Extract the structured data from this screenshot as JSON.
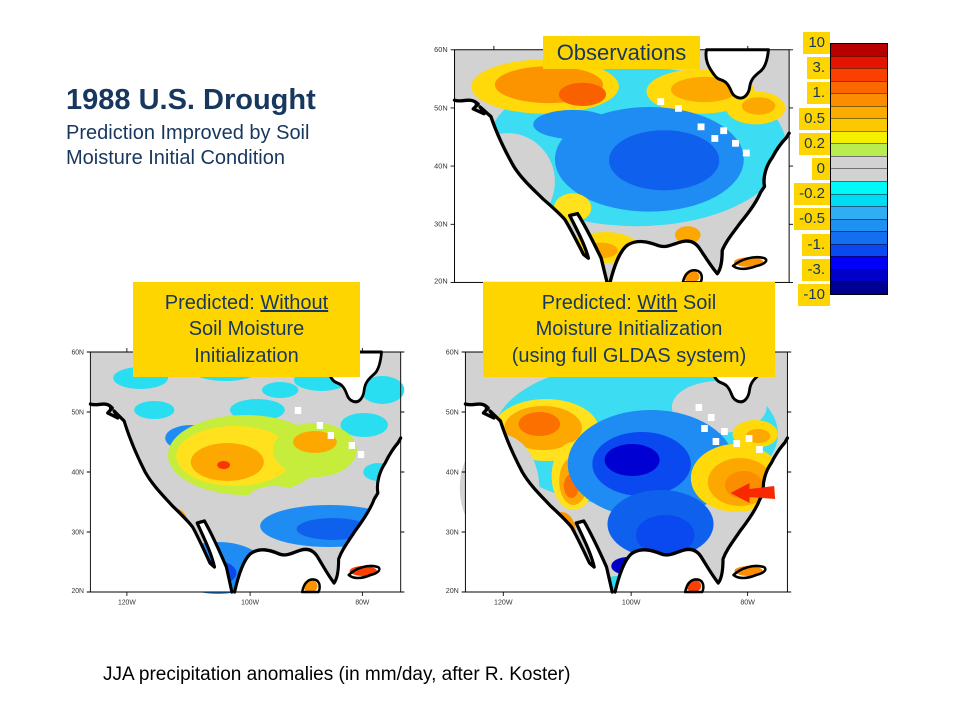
{
  "slide": {
    "title": "1988 U.S. Drought",
    "subtitle_lines": [
      "Prediction Improved by Soil",
      "Moisture Initial Condition"
    ],
    "caption": "JJA precipitation anomalies (in mm/day, after R. Koster)",
    "colors": {
      "accent_text": "#17375E",
      "label_background": "#FFD500",
      "background": "#FFFFFF"
    }
  },
  "panels": [
    {
      "id": "observations",
      "label_lines": [
        [
          {
            "t": "Observations"
          }
        ]
      ]
    },
    {
      "id": "predicted_without",
      "label_lines": [
        [
          {
            "t": "Predicted: "
          },
          {
            "t": "Without",
            "u": true
          }
        ],
        [
          {
            "t": "Soil Moisture"
          }
        ],
        [
          {
            "t": "Initialization"
          }
        ]
      ]
    },
    {
      "id": "predicted_with",
      "label_lines": [
        [
          {
            "t": "Predicted: "
          },
          {
            "t": "With",
            "u": true
          },
          {
            "t": " Soil"
          }
        ],
        [
          {
            "t": "Moisture Initialization"
          }
        ],
        [
          {
            "t": "(using full GLDAS system)"
          }
        ]
      ]
    }
  ],
  "axes": {
    "y_ticks": [
      "60N",
      "50N",
      "40N",
      "30N",
      "20N"
    ],
    "x_ticks": [
      "120W",
      "100W",
      "80W"
    ]
  },
  "colorbar": {
    "tick_labels": [
      "10",
      "3.",
      "1.",
      "0.5",
      "0.2",
      "0",
      "-0.2",
      "-0.5",
      "-1.",
      "-3.",
      "-10"
    ],
    "colors": [
      "#B80000",
      "#E41400",
      "#F94000",
      "#FC6800",
      "#FC8C00",
      "#FCAC00",
      "#FCC800",
      "#F4F000",
      "#B8EC50",
      "#D2D2D2",
      "#D2D2D2",
      "#00F8F8",
      "#00DCF4",
      "#30AEF4",
      "#1E90F0",
      "#146EF0",
      "#0A48F0",
      "#0000FA",
      "#0000C8",
      "#000090"
    ]
  },
  "chart_data": {
    "type": "heatmap",
    "subtype": "filled-contour geographic maps (3 panels)",
    "units": "mm/day",
    "title": "1988 U.S. Drought — JJA precipitation anomalies",
    "x_ticks": [
      "120W",
      "100W",
      "80W"
    ],
    "y_ticks": [
      "60N",
      "50N",
      "40N",
      "30N",
      "20N"
    ],
    "colorbar_levels": [
      "10",
      "3.",
      "1.",
      "0.5",
      "0.2",
      "0",
      "-0.2",
      "-0.5",
      "-1.",
      "-3.",
      "-10"
    ],
    "colorbar_colors": [
      "#B80000",
      "#E41400",
      "#F94000",
      "#FC6800",
      "#FC8C00",
      "#FCAC00",
      "#FCC800",
      "#F4F000",
      "#B8EC50",
      "#D2D2D2",
      "#D2D2D2",
      "#00F8F8",
      "#00DCF4",
      "#30AEF4",
      "#1E90F0",
      "#146EF0",
      "#0A48F0",
      "#0000FA",
      "#0000C8",
      "#000090"
    ],
    "panels": [
      {
        "title": "Observations",
        "pattern": "Strong negative (blue, about -0.5 to -3 mm/day) anomaly over central/eastern U.S.; positive (orange, ~0.5 to 3) over Pacific Northwest and western Canada; yellow/orange patches near Great Lakes and Northeast; near-zero (gray) along U.S. west coast; white missing-data cells near Great Lakes"
      },
      {
        "title": "Predicted: Without Soil Moisture Initialization",
        "pattern": "Mostly near-zero (gray); weak positive (yellow/orange, ~0.2 to 1) band over central U.S. (opposite sign of observed drought); scattered cyan (~-0.2) patches in north; negative (blue) along Gulf coast, Southeast coast and Mexico; orange over northwest Mexico"
      },
      {
        "title": "Predicted: With Soil Moisture Initialization (using full GLDAS system)",
        "pattern": "Strong negative (blue to dark blue, -1 to -3) anomaly over central U.S. matching observations; positive (orange) over northern Rockies and Southeast (red arrow annotation points to Southeast wet anomaly); orange over Mexico; gray along west coast and in Northeast"
      }
    ],
    "annotations": [
      "red left-pointing arrow over Southeast positive anomaly in 'With' panel"
    ]
  }
}
